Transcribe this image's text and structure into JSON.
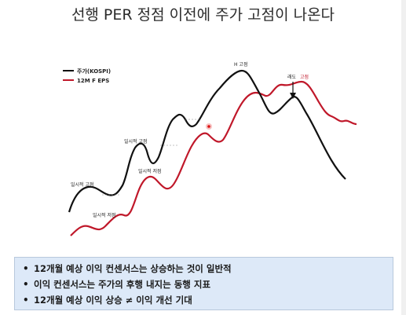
{
  "slide": {
    "title": "선행 PER 정점 이전에 주가 고점이 나온다"
  },
  "legend": [
    {
      "label": "주가(KOSPI)",
      "color": "#111111"
    },
    {
      "label": "12M F EPS",
      "color": "#c0182a"
    }
  ],
  "annotations": {
    "h_peak": "H 고점",
    "lag": "래도",
    "lag_peak": "고점",
    "local_high_1": "일시적 고점",
    "local_low_1": "일시적 저점",
    "local_high_2": "일시적 고점",
    "local_low_2": "일시적 저점"
  },
  "colors": {
    "kospi": "#111111",
    "eps": "#c0182a",
    "box": "#dde9f8"
  },
  "bullets": [
    "12개월 예상 이익 컨센서스는 상승하는 것이 일반적",
    "이익 컨센서스는 주가의 후행 내지는 동행 지표",
    "12개월 예상 이익 상승 ≠ 이익 개선 기대"
  ]
}
